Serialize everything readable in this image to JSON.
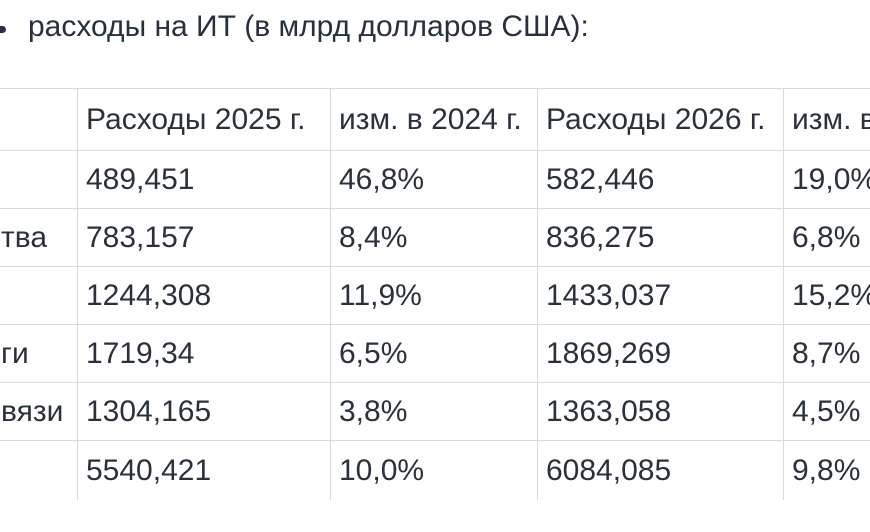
{
  "title": "расходы на ИТ (в млрд долларов США):",
  "colors": {
    "text": "#2b313a",
    "border": "#d7dadd",
    "background": "#ffffff"
  },
  "chart_data": {
    "type": "table",
    "title": "расходы на ИТ (в млрд долларов США):",
    "columns": [
      "",
      "Расходы 2025 г.",
      "изм. в 2024 г.",
      "Расходы 2026 г.",
      "изм. в"
    ],
    "rows": [
      [
        "",
        "489,451",
        "46,8%",
        "582,446",
        "19,0%"
      ],
      [
        "тва",
        "783,157",
        "8,4%",
        "836,275",
        "6,8%"
      ],
      [
        "",
        "1244,308",
        "11,9%",
        "1433,037",
        "15,2%"
      ],
      [
        "ги",
        "1719,34",
        "6,5%",
        "1869,269",
        "8,7%"
      ],
      [
        "вязи",
        "1304,165",
        "3,8%",
        "1363,058",
        "4,5%"
      ],
      [
        "",
        "5540,421",
        "10,0%",
        "6084,085",
        "9,8%"
      ]
    ]
  }
}
